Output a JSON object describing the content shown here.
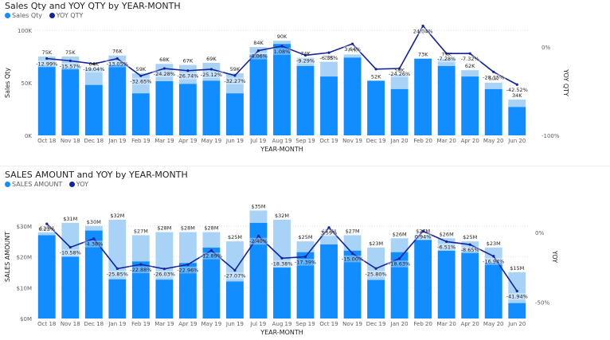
{
  "chart_data": [
    {
      "type": "bar+line",
      "title": "Sales Qty and YOY QTY by YEAR-MONTH",
      "legend": [
        {
          "name": "Sales Qty",
          "color": "#118DFF"
        },
        {
          "name": "YOY QTY",
          "color": "#12239E"
        }
      ],
      "legend_position": "top-left",
      "xlabel": "YEAR-MONTH",
      "ylabel": "Sales Qty",
      "y2label": "YOY QTY",
      "ylim": [
        0,
        100000
      ],
      "y_ticks": [
        {
          "v": 0,
          "label": "0K"
        },
        {
          "v": 50000,
          "label": "50K"
        },
        {
          "v": 100000,
          "label": "100K"
        }
      ],
      "y2lim": [
        -100,
        10
      ],
      "y2_ticks": [
        {
          "v": 0,
          "label": "0%"
        },
        {
          "v": -100,
          "label": "-100%"
        }
      ],
      "categories": [
        "Oct 18",
        "Nov 18",
        "Dec 18",
        "Jan 19",
        "Feb 19",
        "Mar 19",
        "Apr 19",
        "May 19",
        "Jun 19",
        "Jul 19",
        "Aug 19",
        "Sep 19",
        "Oct 19",
        "Nov 19",
        "Dec 19",
        "Jan 20",
        "Feb 20",
        "Mar 20",
        "Apr 20",
        "May 20",
        "Jun 20"
      ],
      "series": [
        {
          "name": "Sales Qty",
          "kind": "bar",
          "color": "#118DFF",
          "values": [
            75000,
            75000,
            64000,
            76000,
            59000,
            68000,
            67000,
            69000,
            59000,
            84000,
            90000,
            74000,
            70000,
            77000,
            52000,
            58000,
            73000,
            73000,
            62000,
            50000,
            34000
          ],
          "labels": [
            "75K",
            "75K",
            "64K",
            "76K",
            "59K",
            "68K",
            "67K",
            "69K",
            "59K",
            "84K",
            "90K",
            "74K",
            "70K",
            "77K",
            "52K",
            "58K",
            "73K",
            "73K",
            "62K",
            "50K",
            "34K"
          ],
          "baseline": [
            65500,
            63500,
            48000,
            67000,
            40000,
            51500,
            49000,
            52000,
            40000,
            77000,
            87000,
            66000,
            56000,
            74000,
            52000,
            44000,
            73000,
            66000,
            56000,
            44000,
            27000
          ],
          "baseline_color": "#a9d3f6"
        },
        {
          "name": "YOY QTY",
          "kind": "line",
          "color": "#12239E",
          "values": [
            -12.99,
            -15.57,
            -19.04,
            -13.05,
            -32.65,
            -24.28,
            -26.74,
            -25.12,
            -32.27,
            -4.06,
            1.08,
            -9.29,
            -6.35,
            3.64,
            -25.0,
            -24.26,
            24.04,
            -7.28,
            -7.32,
            -28.15,
            -42.52
          ],
          "labels": [
            "-12.99%",
            "-15.57%",
            "-19.04%",
            "-13.05%",
            "-32.65%",
            "-24.28%",
            "-26.74%",
            "-25.12%",
            "-32.27%",
            "-4.06%",
            "1.08%",
            "-9.29%",
            "-6.35%",
            "3.64%",
            "",
            "-24.26%",
            "24.04%",
            "-7.28%",
            "-7.32%",
            "-28.15%",
            "-42.52%"
          ]
        }
      ],
      "grid": true
    },
    {
      "type": "bar+line",
      "title": "SALES AMOUNT and YOY by YEAR-MONTH",
      "legend": [
        {
          "name": "SALES AMOUNT",
          "color": "#118DFF"
        },
        {
          "name": "YOY",
          "color": "#12239E"
        }
      ],
      "legend_position": "top-left",
      "xlabel": "YEAR-MONTH",
      "ylabel": "SALES AMOUNT",
      "y2label": "YOY",
      "ylim": [
        0,
        40000000
      ],
      "y_ticks": [
        {
          "v": 0,
          "label": "$0M"
        },
        {
          "v": 10000000,
          "label": "$10M"
        },
        {
          "v": 20000000,
          "label": "$20M"
        },
        {
          "v": 30000000,
          "label": "$30M"
        }
      ],
      "y2lim": [
        -65,
        8
      ],
      "y2_ticks": [
        {
          "v": 0,
          "label": "0%"
        },
        {
          "v": -50,
          "label": "-50%"
        }
      ],
      "categories": [
        "Oct 18",
        "Nov 18",
        "Dec 18",
        "Jan 19",
        "Feb 19",
        "Mar 19",
        "Apr 19",
        "May 19",
        "Jun 19",
        "Jul 19",
        "Aug 19",
        "Sep 19",
        "Oct 19",
        "Nov 19",
        "Dec 19",
        "Jan 20",
        "Feb 20",
        "Mar 20",
        "Apr 20",
        "May 20",
        "Jun 20"
      ],
      "series": [
        {
          "name": "SALES AMOUNT",
          "kind": "bar",
          "color": "#118DFF",
          "values": [
            28000000,
            31000000,
            30000000,
            32000000,
            27000000,
            28000000,
            28000000,
            28000000,
            25000000,
            35000000,
            32000000,
            25000000,
            27000000,
            27000000,
            23000000,
            26000000,
            27000000,
            26000000,
            25000000,
            23000000,
            15000000
          ],
          "labels": [
            "$28M",
            "$31M",
            "$30M",
            "$32M",
            "$27M",
            "$28M",
            "$28M",
            "$28M",
            "$25M",
            "$35M",
            "$32M",
            "$25M",
            "$27M",
            "$27M",
            "$23M",
            "$26M",
            "$27M",
            "$26M",
            "$25M",
            "$23M",
            "$15M"
          ],
          "baseline": [
            27000000,
            20000000,
            28500000,
            12700000,
            18500000,
            12600000,
            18000000,
            23000000,
            12000000,
            31000000,
            16500000,
            21500000,
            24000000,
            22000000,
            12500000,
            21500000,
            25500000,
            22000000,
            21500000,
            18000000,
            5000000
          ],
          "baseline_color": "#a9d3f6"
        },
        {
          "name": "YOY",
          "kind": "line",
          "color": "#12239E",
          "values": [
            6.23,
            -10.58,
            -4.38,
            -25.85,
            -22.88,
            -26.03,
            -22.96,
            -12.89,
            -27.07,
            -2.4,
            -18.38,
            -17.39,
            3.59,
            -15.0,
            -25.8,
            -18.63,
            0.94,
            -6.51,
            -8.65,
            -16.94,
            -41.94
          ],
          "labels": [
            "6.23%",
            "-10.58%",
            "-4.38%",
            "-25.85%",
            "-22.88%",
            "-26.03%",
            "-22.96%",
            "-12.89%",
            "-27.07%",
            "-2.40%",
            "-18.38%",
            "-17.39%",
            "3.59%",
            "-15.00%",
            "-25.80%",
            "-18.63%",
            "0.94%",
            "-6.51%",
            "-8.65%",
            "-16.94%",
            "-41.94%"
          ]
        }
      ],
      "grid": true
    }
  ]
}
